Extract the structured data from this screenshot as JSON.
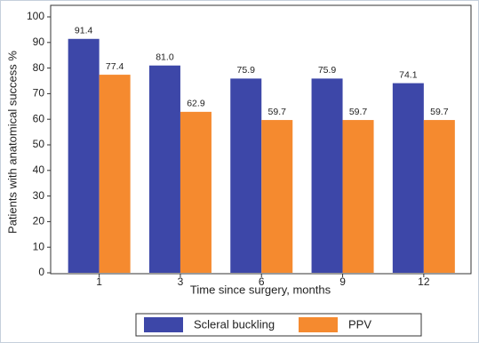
{
  "chart_data": {
    "type": "bar",
    "categories": [
      "1",
      "3",
      "6",
      "9",
      "12"
    ],
    "x_label": "Time since surgery, months",
    "y_label": "Patients with anatomical success %",
    "series": [
      {
        "name": "Scleral buckling",
        "color": "#3d47a8",
        "values": [
          91.4,
          81.0,
          75.9,
          75.9,
          74.1
        ],
        "value_labels": [
          "91.4",
          "81.0",
          "75.9",
          "75.9",
          "74.1"
        ]
      },
      {
        "name": "PPV",
        "color": "#f58a2f",
        "values": [
          77.4,
          62.9,
          59.7,
          59.7,
          59.7
        ],
        "value_labels": [
          "77.4",
          "62.9",
          "59.7",
          "59.7",
          "59.7"
        ]
      }
    ],
    "ylim": [
      0,
      100
    ],
    "yticks": [
      0,
      10,
      20,
      30,
      40,
      50,
      60,
      70,
      80,
      90,
      100
    ],
    "legend": "bottom"
  }
}
